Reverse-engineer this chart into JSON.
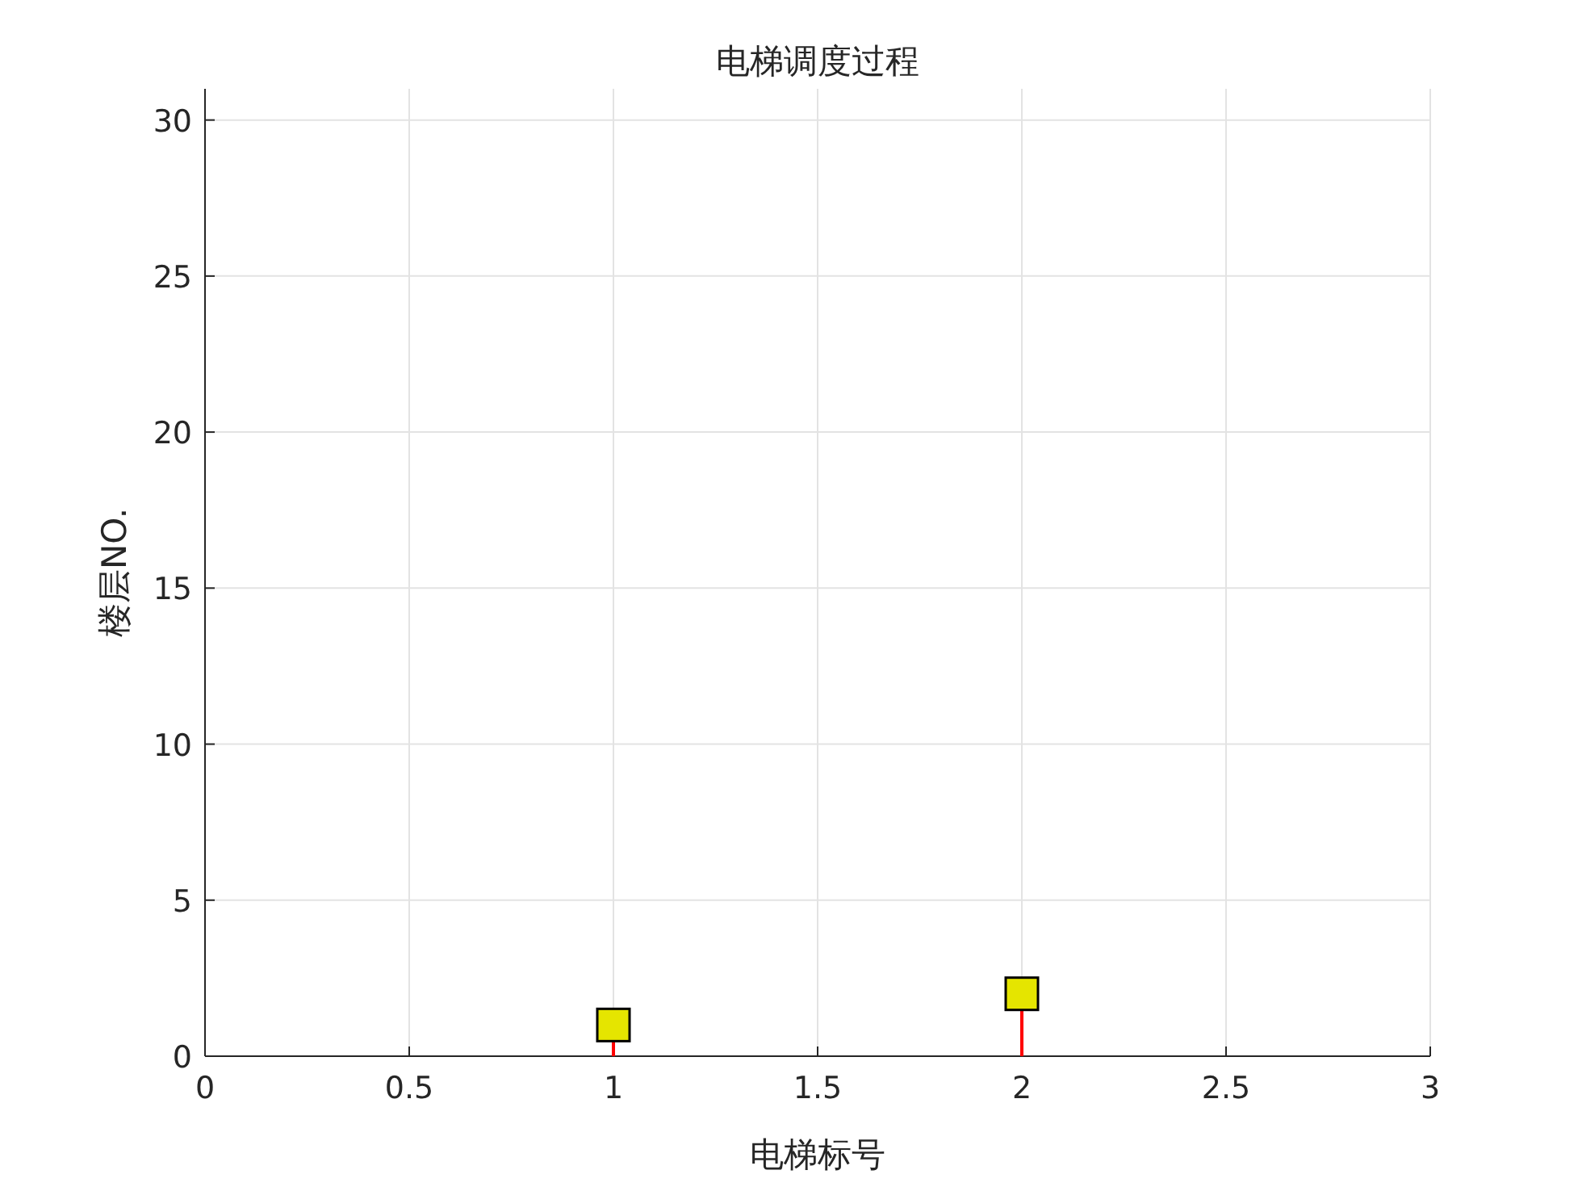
{
  "chart_data": {
    "type": "lollipop",
    "title": "电梯调度过程",
    "xlabel": "电梯标号",
    "ylabel": "楼层NO.",
    "x": [
      1,
      2
    ],
    "series": [
      {
        "color": "#ff0000",
        "colors": [
          "#e5e500",
          "#e5e500"
        ],
        "values": [
          1,
          2
        ]
      }
    ],
    "marker": "square",
    "xlim": [
      0,
      3
    ],
    "xticks": [
      0,
      0.5,
      1,
      1.5,
      2,
      2.5,
      3
    ],
    "ylim": [
      0,
      31
    ],
    "yticks": [
      0,
      5,
      10,
      15,
      20,
      25,
      30
    ],
    "grid": true
  }
}
